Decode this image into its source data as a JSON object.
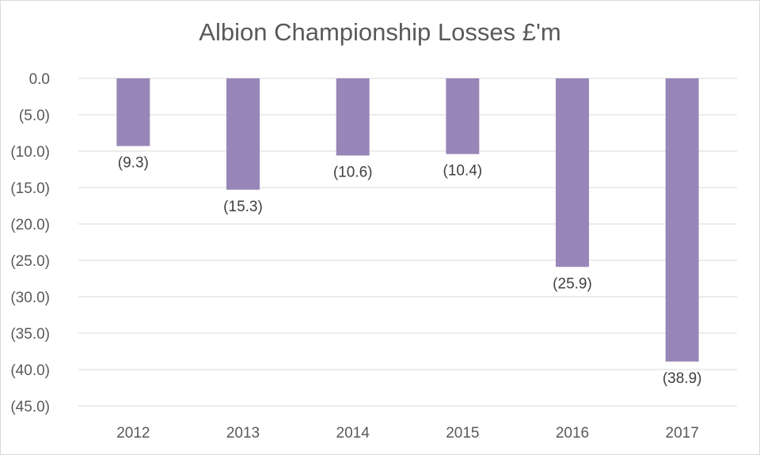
{
  "chart_data": {
    "type": "bar",
    "title": "Albion Championship Losses £'m",
    "categories": [
      "2012",
      "2013",
      "2014",
      "2015",
      "2016",
      "2017"
    ],
    "values": [
      -9.3,
      -15.3,
      -10.6,
      -10.4,
      -25.9,
      -38.9
    ],
    "data_labels": [
      "(9.3)",
      "(15.3)",
      "(10.6)",
      "(10.4)",
      "(25.9)",
      "(38.9)"
    ],
    "y_ticks": [
      0,
      -5,
      -10,
      -15,
      -20,
      -25,
      -30,
      -35,
      -40,
      -45
    ],
    "y_tick_labels": [
      "0.0",
      "(5.0)",
      "(10.0)",
      "(15.0)",
      "(20.0)",
      "(25.0)",
      "(30.0)",
      "(35.0)",
      "(40.0)",
      "(45.0)"
    ],
    "ylim": [
      -45,
      0
    ],
    "grid": true,
    "legend": "none",
    "bar_color": "#9886b8",
    "grid_color": "#d9d9d9"
  }
}
